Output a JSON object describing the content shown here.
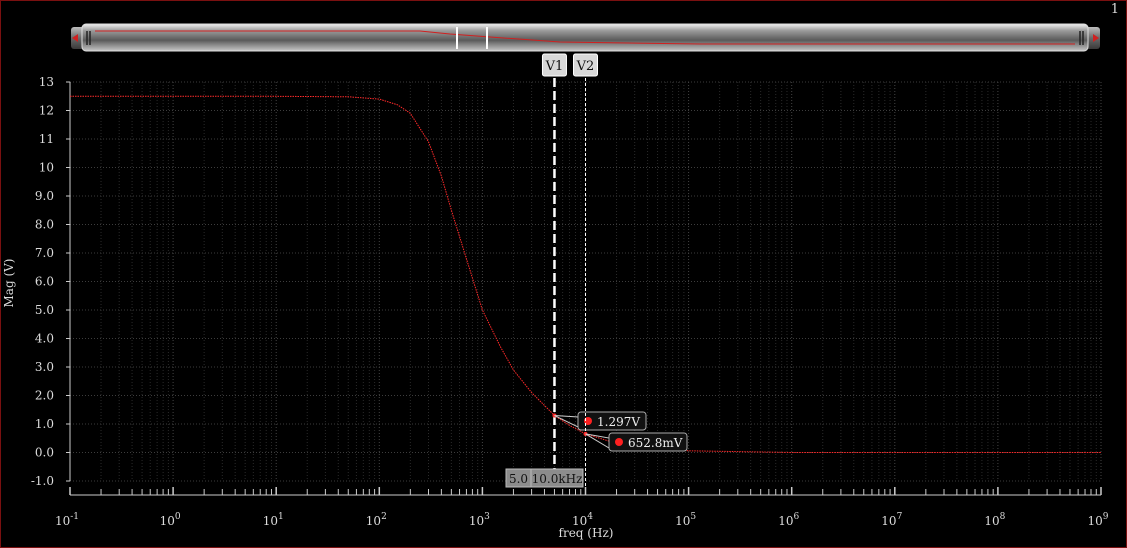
{
  "page_number": "1",
  "chart_data": {
    "type": "line",
    "title": "",
    "xlabel": "freq (Hz)",
    "ylabel": "Mag (V)",
    "xscale": "log",
    "xlim": [
      0.1,
      1000000000
    ],
    "ylim": [
      -1.0,
      13
    ],
    "grid": true,
    "y_ticks": [
      "13",
      "12",
      "11",
      "10",
      "9.0",
      "8.0",
      "7.0",
      "6.0",
      "5.0",
      "4.0",
      "3.0",
      "2.0",
      "1.0",
      "0.0",
      "-1.0"
    ],
    "x_ticks": [
      {
        "base": "10",
        "exp": "-1"
      },
      {
        "base": "10",
        "exp": "0"
      },
      {
        "base": "10",
        "exp": "1"
      },
      {
        "base": "10",
        "exp": "2"
      },
      {
        "base": "10",
        "exp": "3"
      },
      {
        "base": "10",
        "exp": "4"
      },
      {
        "base": "10",
        "exp": "5"
      },
      {
        "base": "10",
        "exp": "6"
      },
      {
        "base": "10",
        "exp": "7"
      },
      {
        "base": "10",
        "exp": "8"
      },
      {
        "base": "10",
        "exp": "9"
      }
    ],
    "series": [
      {
        "color": "#ff2a2a",
        "x": [
          0.1,
          1,
          10,
          50,
          100,
          150,
          200,
          300,
          400,
          500,
          700,
          1000,
          1500,
          2000,
          3000,
          5000,
          7000,
          10000,
          20000,
          50000,
          100000,
          1000000,
          1000000000
        ],
        "y": [
          12.5,
          12.5,
          12.5,
          12.48,
          12.4,
          12.2,
          11.9,
          10.9,
          9.7,
          8.5,
          6.8,
          5.0,
          3.7,
          2.9,
          2.1,
          1.297,
          0.95,
          0.6528,
          0.32,
          0.13,
          0.06,
          0.0,
          0.0
        ]
      }
    ],
    "markers": [
      {
        "label": "V1",
        "x": 5000,
        "y": 1.297,
        "value_label": "1.297V",
        "x_label": "5.0"
      },
      {
        "label": "V2",
        "x": 10000,
        "y": 0.6528,
        "value_label": "652.8mV",
        "x_label": "10.0kHz"
      }
    ]
  }
}
